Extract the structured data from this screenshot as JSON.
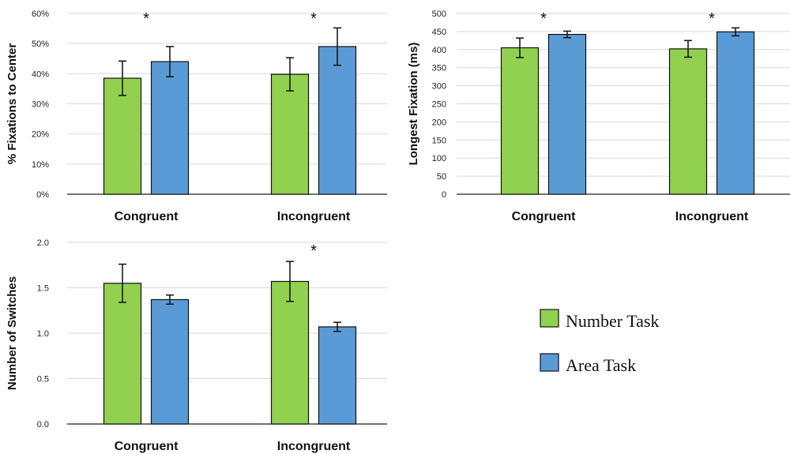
{
  "legend": [
    {
      "label": "Number Task",
      "color": "#92d050"
    },
    {
      "label": "Area Task",
      "color": "#5b9bd5"
    }
  ],
  "chart_data": [
    {
      "type": "bar",
      "ylabel": "% Fixations to Center",
      "categories": [
        "Congruent",
        "Incongruent"
      ],
      "ylim": [
        0,
        60
      ],
      "yticks": [
        "0%",
        "10%",
        "20%",
        "30%",
        "40%",
        "50%",
        "60%"
      ],
      "y_unit": "percent",
      "series": [
        {
          "name": "Number Task",
          "values": [
            38.5,
            39.8
          ],
          "errors": [
            5.7,
            5.5
          ]
        },
        {
          "name": "Area Task",
          "values": [
            44.0,
            49.0
          ],
          "errors": [
            5.0,
            6.2
          ]
        }
      ],
      "significance": [
        "*",
        "*"
      ],
      "grid": true
    },
    {
      "type": "bar",
      "ylabel": "Longest Fixation (ms)",
      "categories": [
        "Congruent",
        "Incongruent"
      ],
      "ylim": [
        0,
        500
      ],
      "yticks": [
        "0",
        "50",
        "100",
        "150",
        "200",
        "250",
        "300",
        "350",
        "400",
        "450",
        "500"
      ],
      "series": [
        {
          "name": "Number Task",
          "values": [
            405,
            402
          ],
          "errors": [
            27,
            23
          ]
        },
        {
          "name": "Area Task",
          "values": [
            442,
            449
          ],
          "errors": [
            9,
            11
          ]
        }
      ],
      "significance": [
        "*",
        "*"
      ],
      "grid": true
    },
    {
      "type": "bar",
      "ylabel": "Number of Switches",
      "categories": [
        "Congruent",
        "Incongruent"
      ],
      "ylim": [
        0,
        2.0
      ],
      "yticks": [
        "0.0",
        "0.5",
        "1.0",
        "1.5",
        "2.0"
      ],
      "series": [
        {
          "name": "Number Task",
          "values": [
            1.55,
            1.57
          ],
          "errors": [
            0.21,
            0.22
          ]
        },
        {
          "name": "Area Task",
          "values": [
            1.37,
            1.07
          ],
          "errors": [
            0.05,
            0.05
          ]
        }
      ],
      "significance": [
        "",
        "*"
      ],
      "grid": true
    }
  ]
}
